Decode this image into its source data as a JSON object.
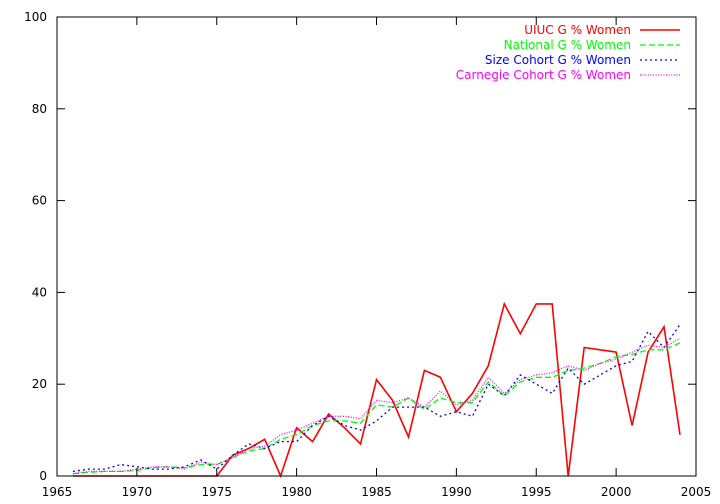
{
  "chart_data": {
    "type": "line",
    "title": "",
    "xlabel": "",
    "ylabel": "",
    "xlim": [
      1965,
      2005
    ],
    "ylim": [
      0,
      100
    ],
    "xticks": [
      1965,
      1970,
      1975,
      1980,
      1985,
      1990,
      1995,
      2000,
      2005
    ],
    "yticks": [
      0,
      20,
      40,
      60,
      80,
      100
    ],
    "grid": false,
    "legend_position": "top-right",
    "series": [
      {
        "name": "UIUC G % Women",
        "color": "#ff0000",
        "dash": "solid",
        "x": [
          1966,
          1967,
          1968,
          1969,
          1970,
          1971,
          1972,
          1973,
          1974,
          1975,
          1976,
          1977,
          1978,
          1979,
          1980,
          1981,
          1982,
          1983,
          1984,
          1985,
          1986,
          1987,
          1988,
          1989,
          1990,
          1991,
          1992,
          1993,
          1994,
          1995,
          1996,
          1997,
          1998,
          1999,
          2000,
          2001,
          2002,
          2003,
          2004
        ],
        "y": [
          0,
          0,
          0,
          0,
          0,
          0,
          0,
          0,
          0,
          0,
          4.5,
          6,
          8,
          0,
          10.5,
          7.5,
          13.5,
          10.5,
          7,
          21,
          16.5,
          8.5,
          23,
          21.5,
          14,
          18,
          24,
          37.5,
          31,
          37.5,
          37.5,
          0,
          28,
          27.5,
          27,
          11,
          27,
          32.5,
          9
        ]
      },
      {
        "name": "National G % Women",
        "color": "#00ff00",
        "dash": "dashed",
        "x": [
          1966,
          1967,
          1968,
          1969,
          1970,
          1971,
          1972,
          1973,
          1974,
          1975,
          1976,
          1977,
          1978,
          1979,
          1980,
          1981,
          1982,
          1983,
          1984,
          1985,
          1986,
          1987,
          1988,
          1989,
          1990,
          1991,
          1992,
          1993,
          1994,
          1995,
          1996,
          1997,
          1998,
          1999,
          2000,
          2001,
          2002,
          2003,
          2004
        ],
        "y": [
          0.5,
          0.8,
          1,
          1,
          1.2,
          1.8,
          2,
          1.8,
          2.5,
          2.5,
          4,
          5.5,
          6,
          8,
          9,
          11,
          12,
          12,
          11.5,
          15.5,
          15,
          17,
          14.5,
          17,
          16,
          16,
          20.5,
          17.5,
          20.5,
          21.5,
          21.5,
          23,
          23.5,
          24.5,
          26,
          26.5,
          27.5,
          27.5,
          29
        ]
      },
      {
        "name": "Size Cohort G % Women",
        "color": "#0000ff",
        "dash": "dotted",
        "x": [
          1966,
          1967,
          1968,
          1969,
          1970,
          1971,
          1972,
          1973,
          1974,
          1975,
          1976,
          1977,
          1978,
          1979,
          1980,
          1981,
          1982,
          1983,
          1984,
          1985,
          1986,
          1987,
          1988,
          1989,
          1990,
          1991,
          1992,
          1993,
          1994,
          1995,
          1996,
          1997,
          1998,
          1999,
          2000,
          2001,
          2002,
          2003,
          2004
        ],
        "y": [
          1,
          1.5,
          1.5,
          2.5,
          2,
          1.5,
          1.5,
          2,
          3.5,
          1.5,
          4.5,
          7,
          6,
          7.5,
          7.5,
          11,
          13,
          11,
          10,
          12,
          15,
          15,
          15,
          13,
          14,
          13,
          20,
          17.5,
          22,
          20,
          18,
          23.5,
          20,
          22,
          24,
          25,
          31.5,
          28,
          33
        ]
      },
      {
        "name": "Carnegie Cohort G % Women",
        "color": "#ff00ff",
        "dash": "fine-dotted",
        "x": [
          1966,
          1967,
          1968,
          1969,
          1970,
          1971,
          1972,
          1973,
          1974,
          1975,
          1976,
          1977,
          1978,
          1979,
          1980,
          1981,
          1982,
          1983,
          1984,
          1985,
          1986,
          1987,
          1988,
          1989,
          1990,
          1991,
          1992,
          1993,
          1994,
          1995,
          1996,
          1997,
          1998,
          1999,
          2000,
          2001,
          2002,
          2003,
          2004
        ],
        "y": [
          0.5,
          1,
          1,
          1,
          1.5,
          2,
          2,
          1.5,
          3,
          2.5,
          4,
          6,
          6.5,
          9,
          10,
          11.5,
          13,
          13,
          12.5,
          16.5,
          16,
          17,
          15,
          18.5,
          15.5,
          16.5,
          21.5,
          18,
          21,
          22,
          22.5,
          24,
          23,
          24.5,
          25.5,
          27,
          28.5,
          28,
          30
        ]
      }
    ]
  }
}
